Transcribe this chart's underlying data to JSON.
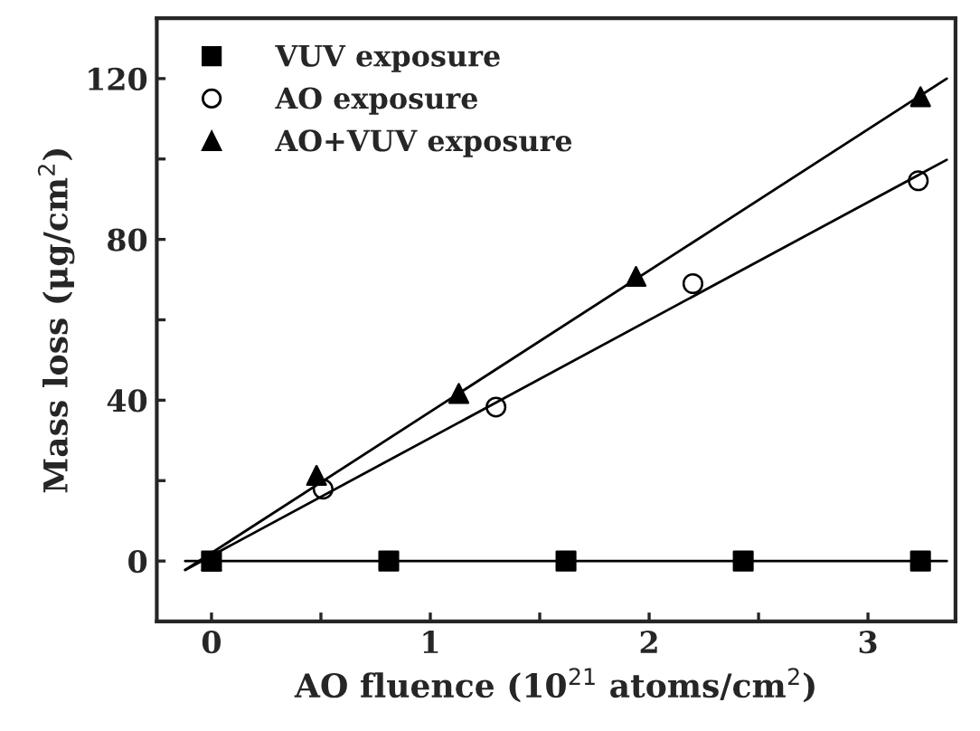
{
  "chart_data": {
    "type": "scatter",
    "xlabel": "AO fluence (10$^{21}$ atoms/cm$^{2}$)",
    "ylabel": "Mass loss (μg/cm$^{2}$)",
    "xlim": [
      -0.25,
      3.4
    ],
    "ylim": [
      -15,
      135
    ],
    "xticks": [
      0,
      {
        "value": 0.5,
        "label": null
      },
      1,
      {
        "value": 1.5,
        "label": null
      },
      2,
      {
        "value": 2.5,
        "label": null
      },
      3
    ],
    "yticks": [
      0,
      {
        "value": 20,
        "label": null
      },
      40,
      {
        "value": 60,
        "label": null
      },
      80,
      {
        "value": 100,
        "label": null
      },
      120
    ],
    "legend": "top left",
    "grid": false,
    "series": [
      {
        "name": "VUV exposure",
        "color": "#000000",
        "marker": "square",
        "x": [
          0,
          0.81,
          1.62,
          2.43,
          3.24
        ],
        "values": [
          0,
          0,
          0,
          0,
          0
        ]
      },
      {
        "name": "AO exposure",
        "color": "#000000",
        "marker": "circle",
        "x": [
          0.51,
          1.3,
          2.2,
          3.23
        ],
        "values": [
          17.9,
          38.3,
          69,
          94.6
        ]
      },
      {
        "name": "AO+VUV exposure",
        "color": "#000000",
        "marker": "triangle",
        "x": [
          0,
          0.48,
          1.13,
          1.94,
          3.24
        ],
        "values": [
          0,
          21.3,
          41.7,
          70.8,
          115.5
        ]
      },
      {
        "type": "line",
        "color": "#000000",
        "marker": "none",
        "x": [
          -0.12,
          3.36
        ],
        "values": [
          0,
          0
        ]
      },
      {
        "type": "line",
        "color": "#000000",
        "marker": "none",
        "x": [
          -0.12,
          3.36
        ],
        "values": [
          -2.2,
          99.8
        ]
      },
      {
        "type": "line",
        "color": "#000000",
        "marker": "none",
        "x": [
          -0.12,
          3.36
        ],
        "values": [
          -2.2,
          120
        ]
      }
    ]
  }
}
